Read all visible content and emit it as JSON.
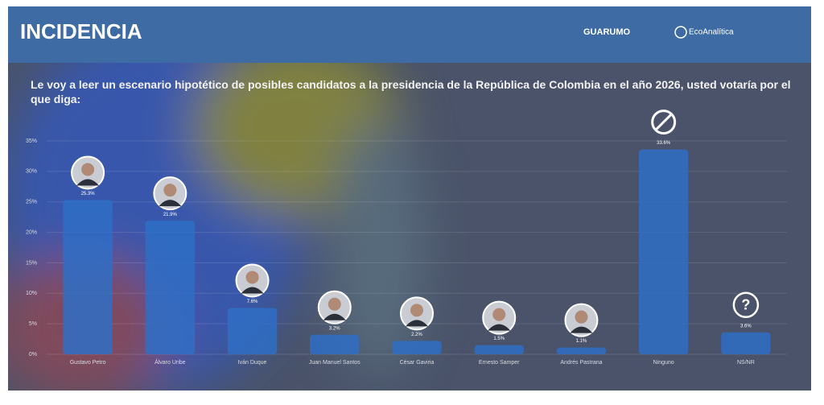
{
  "header": {
    "title": "INCIDENCIA",
    "logos": [
      "GUARUMO",
      "EcoAnalítica"
    ]
  },
  "chart_data": {
    "type": "bar",
    "title": "Le voy a leer un escenario hipotético de posibles candidatos a la presidencia de la República de Colombia en el año 2026, usted votaría por el que diga:",
    "categories": [
      "Gustavo Petro",
      "Álvaro Uribe",
      "Iván Duque",
      "Juan Manuel Santos",
      "César Gaviria",
      "Ernesto Samper",
      "Andrés Pastrana",
      "Ninguno",
      "NS/NR"
    ],
    "values": [
      25.3,
      21.9,
      7.6,
      3.2,
      2.2,
      1.5,
      1.1,
      33.6,
      3.6
    ],
    "value_labels": [
      "25.3%",
      "21.9%",
      "7.6%",
      "3.2%",
      "2.2%",
      "1.5%",
      "1.1%",
      "33.6%",
      "3.6%"
    ],
    "color": "#2f6ec6",
    "ylim": [
      0,
      35
    ],
    "yticks": [
      {
        "value": 0,
        "label": "0%"
      },
      {
        "value": 5,
        "label": "5%"
      },
      {
        "value": 10,
        "label": "10%"
      },
      {
        "value": 15,
        "label": "15%"
      },
      {
        "value": 20,
        "label": "20%"
      },
      {
        "value": 25,
        "label": "25%"
      },
      {
        "value": 30,
        "label": "30%"
      },
      {
        "value": 35,
        "label": "35%"
      }
    ],
    "grid": true
  }
}
